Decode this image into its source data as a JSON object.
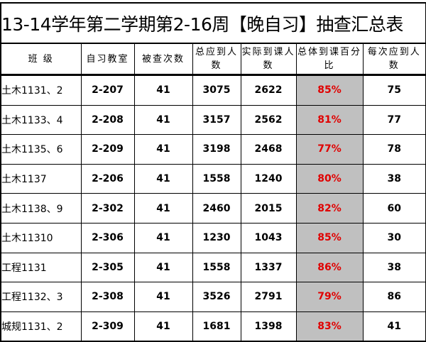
{
  "title": "13-14学年第二学期第2-16周【晚自习】抽查汇总表",
  "headers": [
    "班 级",
    "自习教室",
    "被查次数",
    "总应到人数",
    "实际到课人数",
    "总体到课百分比",
    "每次应到人数"
  ],
  "rows": [
    [
      "土木1131、2",
      "2-207",
      "41",
      "3075",
      "2622",
      "85%",
      "75"
    ],
    [
      "土木1133、4",
      "2-208",
      "41",
      "3157",
      "2562",
      "81%",
      "77"
    ],
    [
      "土木1135、6",
      "2-209",
      "41",
      "3198",
      "2468",
      "77%",
      "78"
    ],
    [
      "土木1137",
      "2-206",
      "41",
      "1558",
      "1240",
      "80%",
      "38"
    ],
    [
      "土木1138、9",
      "2-302",
      "41",
      "2460",
      "2015",
      "82%",
      "60"
    ],
    [
      "土木11310",
      "2-306",
      "41",
      "1230",
      "1043",
      "85%",
      "30"
    ],
    [
      "工程1131",
      "2-305",
      "41",
      "1558",
      "1337",
      "86%",
      "38"
    ],
    [
      "工程1132、3",
      "2-308",
      "41",
      "3526",
      "2791",
      "79%",
      "86"
    ],
    [
      "城规1131、2",
      "2-309",
      "41",
      "1681",
      "1398",
      "83%",
      "41"
    ]
  ],
  "colors": {
    "percent_text": "#e00000",
    "percent_fill": "#c0c0c0"
  }
}
